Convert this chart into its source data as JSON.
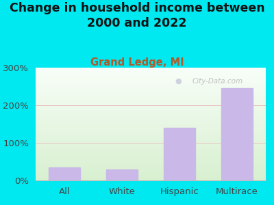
{
  "title": "Change in household income between\n2000 and 2022",
  "subtitle": "Grand Ledge, MI",
  "categories": [
    "All",
    "White",
    "Hispanic",
    "Multirace"
  ],
  "values": [
    35,
    30,
    140,
    245
  ],
  "bar_color": "#c9b8e8",
  "background_color": "#00e8f0",
  "title_color": "#111111",
  "subtitle_color": "#b05a2a",
  "tick_label_color": "#444444",
  "watermark_text": "City-Data.com",
  "ylim": [
    0,
    300
  ],
  "yticks": [
    0,
    100,
    200,
    300
  ],
  "ytick_labels": [
    "0%",
    "100%",
    "200%",
    "300%"
  ],
  "title_fontsize": 12.5,
  "subtitle_fontsize": 10.5,
  "tick_fontsize": 9.5
}
